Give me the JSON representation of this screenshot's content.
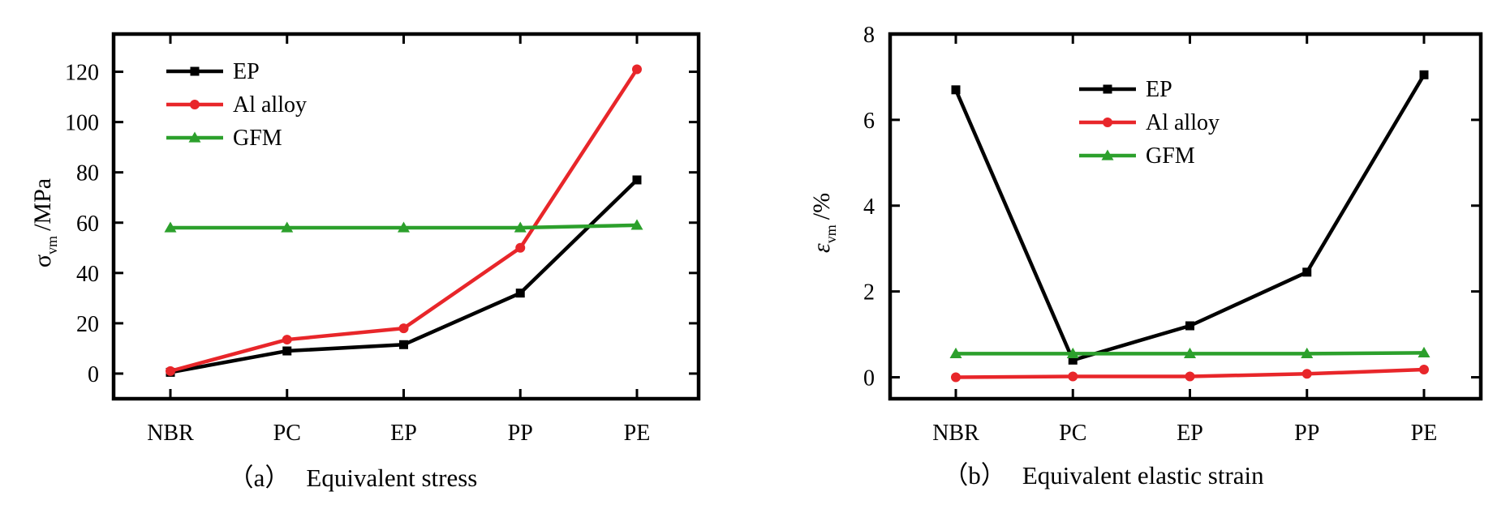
{
  "chart_data": [
    {
      "type": "line",
      "caption_prefix": "（a）",
      "caption": "Equivalent stress",
      "categories": [
        "NBR",
        "PC",
        "EP",
        "PP",
        "PE"
      ],
      "ylabel_sym": "σ",
      "ylabel_sub": "vm",
      "ylabel_unit": "/MPa",
      "ylim": [
        -10,
        135
      ],
      "yticks": [
        0,
        20,
        40,
        60,
        80,
        100,
        120
      ],
      "legend_position": "top-left",
      "grid": false,
      "series": [
        {
          "name": "EP",
          "color": "#000000",
          "marker": "square",
          "values": [
            0.5,
            9,
            11.5,
            32,
            77
          ]
        },
        {
          "name": "Al alloy",
          "color": "#e8262a",
          "marker": "circle",
          "values": [
            1,
            13.5,
            18,
            50,
            121
          ]
        },
        {
          "name": "GFM",
          "color": "#2ca02c",
          "marker": "triangle",
          "values": [
            58,
            58,
            58,
            58,
            59
          ]
        }
      ]
    },
    {
      "type": "line",
      "caption_prefix": "（b）",
      "caption": "Equivalent elastic strain",
      "categories": [
        "NBR",
        "PC",
        "EP",
        "PP",
        "PE"
      ],
      "ylabel_sym": "ε",
      "ylabel_sub": "vm",
      "ylabel_unit": "/%",
      "ylim": [
        -0.5,
        8
      ],
      "yticks": [
        0,
        2,
        4,
        6,
        8
      ],
      "legend_position": "top-center",
      "grid": false,
      "series": [
        {
          "name": "EP",
          "color": "#000000",
          "marker": "square",
          "values": [
            6.7,
            0.4,
            1.2,
            2.45,
            7.05
          ]
        },
        {
          "name": "Al alloy",
          "color": "#e8262a",
          "marker": "circle",
          "values": [
            0,
            0.02,
            0.02,
            0.08,
            0.18
          ]
        },
        {
          "name": "GFM",
          "color": "#2ca02c",
          "marker": "triangle",
          "values": [
            0.55,
            0.55,
            0.55,
            0.55,
            0.57
          ]
        }
      ]
    }
  ]
}
